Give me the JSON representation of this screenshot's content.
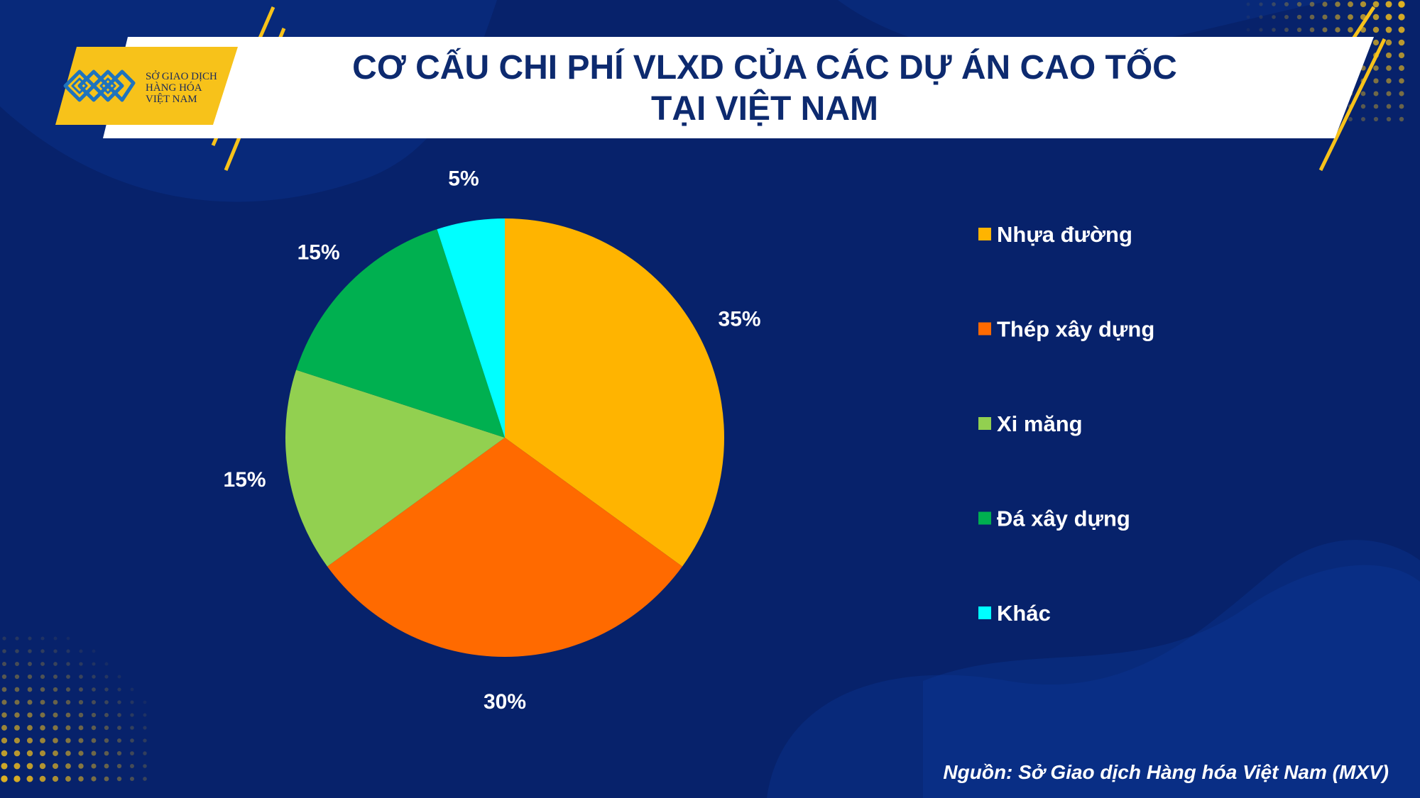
{
  "header": {
    "title_line1": "CƠ CẤU CHI PHÍ VLXD CỦA CÁC DỰ ÁN CAO TỐC",
    "title_line2": "TẠI VIỆT NAM"
  },
  "logo": {
    "line1": "SỞ GIAO DỊCH",
    "line2": "HÀNG HÓA",
    "line3": "VIỆT NAM"
  },
  "source": "Nguồn: Sở Giao dịch Hàng hóa Việt Nam (MXV)",
  "colors": {
    "background": "#07226b",
    "accent_yellow": "#f7c21a",
    "title_text": "#0d2a6f"
  },
  "chart_data": {
    "type": "pie",
    "legend_position": "right",
    "categories": [
      "Nhựa đường",
      "Thép xây dựng",
      "Xi măng",
      "Đá xây dựng",
      "Khác"
    ],
    "values": [
      35,
      30,
      15,
      15,
      5
    ],
    "labels": [
      "35%",
      "30%",
      "15%",
      "15%",
      "5%"
    ],
    "colors": [
      "#ffb400",
      "#ff6a00",
      "#92d050",
      "#00b050",
      "#00ffff"
    ]
  }
}
